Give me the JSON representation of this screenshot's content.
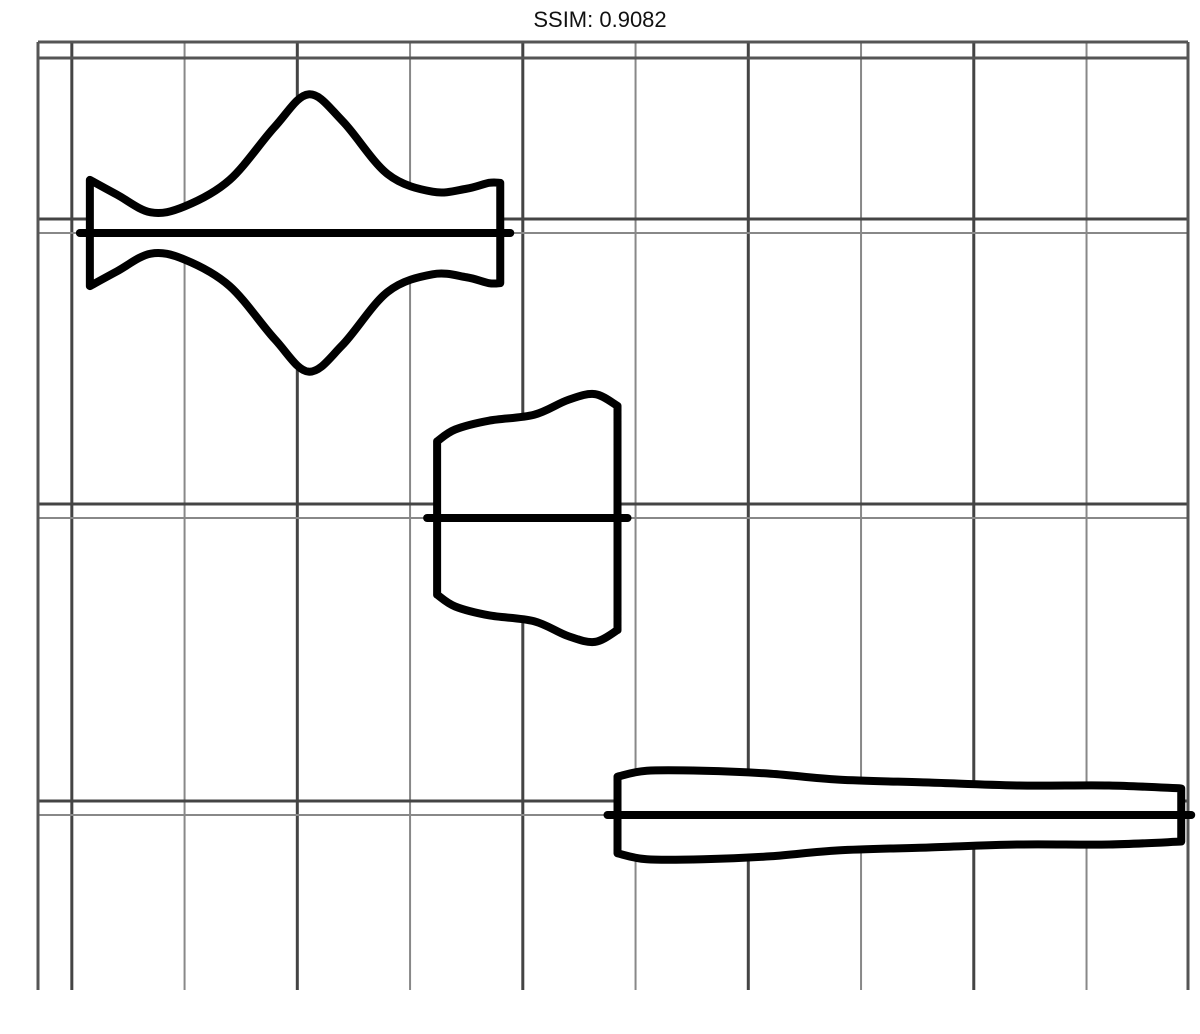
{
  "chart_data": {
    "type": "violin",
    "title": "SSIM: 0.9082",
    "xlabel": "",
    "ylabel": "",
    "orientation": "horizontal",
    "grid": true,
    "xlim": [
      -0.15,
      4.95
    ],
    "x_major_ticks": [
      0,
      1,
      2,
      3,
      4,
      5
    ],
    "x_minor_ticks": [
      0.5,
      1.5,
      2.5,
      3.5,
      4.5
    ],
    "x_tick_labels": [
      "",
      "",
      "",
      "",
      "",
      ""
    ],
    "categories": [
      "",
      "",
      ""
    ],
    "series": [
      {
        "category_index": 0,
        "median": 1.9,
        "profile": [
          [
            0.08,
            0.18
          ],
          [
            0.2,
            0.13
          ],
          [
            0.35,
            0.07
          ],
          [
            0.5,
            0.09
          ],
          [
            0.7,
            0.18
          ],
          [
            0.9,
            0.36
          ],
          [
            1.05,
            0.47
          ],
          [
            1.2,
            0.38
          ],
          [
            1.4,
            0.2
          ],
          [
            1.6,
            0.14
          ],
          [
            1.75,
            0.15
          ],
          [
            1.85,
            0.17
          ],
          [
            1.9,
            0.17
          ]
        ]
      },
      {
        "category_index": 1,
        "median": 2.15,
        "profile": [
          [
            1.62,
            0.26
          ],
          [
            1.7,
            0.3
          ],
          [
            1.85,
            0.33
          ],
          [
            2.05,
            0.35
          ],
          [
            2.2,
            0.4
          ],
          [
            2.32,
            0.42
          ],
          [
            2.42,
            0.38
          ]
        ]
      },
      {
        "category_index": 2,
        "median": 2.45,
        "profile": [
          [
            2.42,
            0.13
          ],
          [
            2.55,
            0.15
          ],
          [
            2.8,
            0.15
          ],
          [
            3.1,
            0.14
          ],
          [
            3.4,
            0.12
          ],
          [
            3.8,
            0.11
          ],
          [
            4.2,
            0.1
          ],
          [
            4.6,
            0.1
          ],
          [
            4.92,
            0.09
          ]
        ]
      }
    ]
  }
}
